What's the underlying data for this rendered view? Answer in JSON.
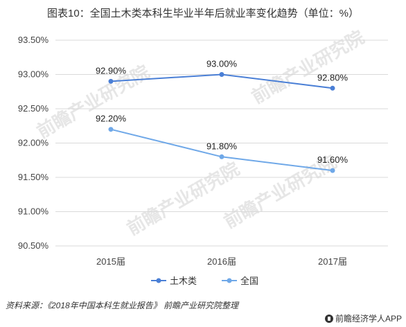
{
  "title": "图表10：全国土木类本科生毕业半年后就业率变化趋势（单位：%）",
  "source": "资料来源：《2018年中国本科生就业报告》 前瞻产业研究院整理",
  "brand": "前瞻经济学人APP",
  "watermark_text": "前瞻产业研究院",
  "colors": {
    "civil": "#4a7fd6",
    "national": "#6fa8e8",
    "grid": "#d9d9d9"
  },
  "chart_data": {
    "type": "line",
    "categories": [
      "2015届",
      "2016届",
      "2017届"
    ],
    "series": [
      {
        "name": "土木类",
        "values": [
          92.9,
          93.0,
          92.8
        ],
        "labels": [
          "92.90%",
          "93.00%",
          "92.80%"
        ]
      },
      {
        "name": "全国",
        "values": [
          92.2,
          91.8,
          91.6
        ],
        "labels": [
          "92.20%",
          "91.80%",
          "91.60%"
        ]
      }
    ],
    "ylim": [
      90.5,
      93.5
    ],
    "yticks": [
      "93.50%",
      "93.00%",
      "92.50%",
      "92.00%",
      "91.50%",
      "91.00%",
      "90.50%"
    ],
    "grid": true,
    "legend": "bottom"
  }
}
